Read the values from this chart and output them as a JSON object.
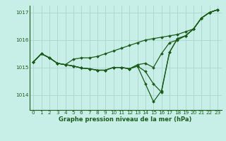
{
  "title": "Graphe pression niveau de la mer (hPa)",
  "bg_color": "#c8eee8",
  "grid_color": "#b0d8d0",
  "line_color": "#1a5c1a",
  "xlim": [
    -0.5,
    23.5
  ],
  "ylim": [
    1013.45,
    1017.25
  ],
  "yticks": [
    1014,
    1015,
    1016,
    1017
  ],
  "xticks": [
    0,
    1,
    2,
    3,
    4,
    5,
    6,
    7,
    8,
    9,
    10,
    11,
    12,
    13,
    14,
    15,
    16,
    17,
    18,
    19,
    20,
    21,
    22,
    23
  ],
  "series1": [
    1015.2,
    1015.5,
    1015.35,
    1015.15,
    1015.1,
    1015.05,
    1014.98,
    1014.95,
    1014.9,
    1014.9,
    1015.0,
    1015.0,
    1014.95,
    1015.1,
    1015.15,
    1015.0,
    1015.5,
    1015.9,
    1016.0,
    1016.15,
    1016.4,
    1016.8,
    1017.0,
    1017.1
  ],
  "series2": [
    1015.2,
    1015.5,
    1015.35,
    1015.15,
    1015.1,
    1015.05,
    1014.98,
    1014.95,
    1014.9,
    1014.9,
    1015.0,
    1015.0,
    1014.95,
    1015.05,
    1014.85,
    1014.4,
    1014.1,
    1015.55,
    1016.05,
    1016.15,
    1016.4,
    1016.8,
    1017.0,
    1017.1
  ],
  "series3": [
    1015.2,
    1015.5,
    1015.35,
    1015.15,
    1015.1,
    1015.05,
    1014.98,
    1014.95,
    1014.9,
    1014.9,
    1015.0,
    1015.0,
    1014.95,
    1015.05,
    1014.4,
    1013.75,
    1014.15,
    1015.55,
    1016.05,
    1016.15,
    1016.4,
    1016.8,
    1017.0,
    1017.1
  ],
  "series4": [
    1015.2,
    1015.5,
    1015.35,
    1015.15,
    1015.1,
    1015.3,
    1015.35,
    1015.35,
    1015.4,
    1015.5,
    1015.6,
    1015.7,
    1015.8,
    1015.9,
    1016.0,
    1016.05,
    1016.1,
    1016.15,
    1016.2,
    1016.3,
    1016.4,
    1016.8,
    1017.0,
    1017.1
  ],
  "marker_size": 2.0,
  "line_width": 0.9,
  "tick_fontsize": 5.2,
  "xlabel_fontsize": 6.0
}
